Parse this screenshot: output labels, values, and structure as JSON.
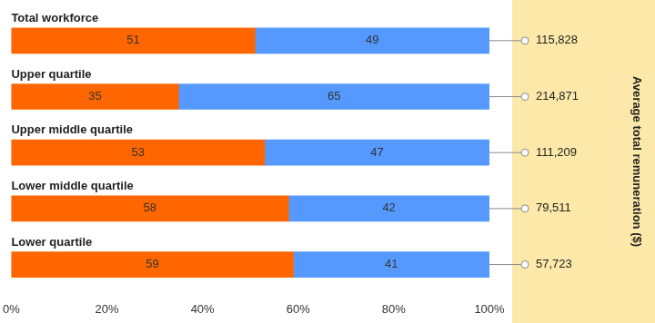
{
  "chart_data": {
    "type": "bar",
    "orientation": "horizontal",
    "stacked": true,
    "data_labels": true,
    "grid": false,
    "legend": false,
    "categories": [
      "Total workforce",
      "Upper quartile",
      "Upper middle quartile",
      "Lower middle quartile",
      "Lower quartile"
    ],
    "series": [
      {
        "color": "#ff6600",
        "values": [
          51,
          35,
          53,
          58,
          59
        ]
      },
      {
        "color": "#5599ff",
        "values": [
          49,
          65,
          47,
          42,
          41
        ]
      }
    ],
    "xlim": [
      0,
      100
    ],
    "xticks": [
      {
        "value": 0,
        "label": "0%"
      },
      {
        "value": 20,
        "label": "20%"
      },
      {
        "value": 40,
        "label": "40%"
      },
      {
        "value": 60,
        "label": "60%"
      },
      {
        "value": 80,
        "label": "80%"
      },
      {
        "value": 100,
        "label": "100%"
      }
    ],
    "remuneration": {
      "title": "Average total remuneration ($)",
      "values": [
        115828,
        214871,
        111209,
        79511,
        57723
      ],
      "value_labels": [
        "115,828",
        "214,871",
        "111,209",
        "79,511",
        "57,723"
      ]
    }
  }
}
